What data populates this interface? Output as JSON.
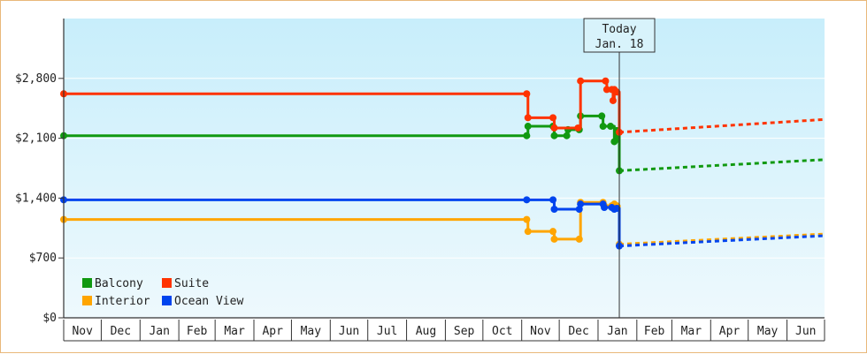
{
  "chart_data": {
    "type": "line",
    "title": "",
    "xlabel": "",
    "ylabel": "",
    "ylim": [
      0,
      3500
    ],
    "y_ticks": [
      {
        "value": 0,
        "label": "$0"
      },
      {
        "value": 700,
        "label": "$700"
      },
      {
        "value": 1400,
        "label": "$1,400"
      },
      {
        "value": 2100,
        "label": "$2,100"
      },
      {
        "value": 2800,
        "label": "$2,800"
      }
    ],
    "x_domain": [
      "2023-11-01",
      "2025-07-01"
    ],
    "x_ticks": [
      {
        "label": "Nov",
        "start": "2023-11-01",
        "end": "2023-12-01"
      },
      {
        "label": "Dec",
        "start": "2023-12-01",
        "end": "2024-01-01"
      },
      {
        "label": "Jan",
        "start": "2024-01-01",
        "end": "2024-02-01"
      },
      {
        "label": "Feb",
        "start": "2024-02-01",
        "end": "2024-03-01"
      },
      {
        "label": "Mar",
        "start": "2024-03-01",
        "end": "2024-04-01"
      },
      {
        "label": "Apr",
        "start": "2024-04-01",
        "end": "2024-05-01"
      },
      {
        "label": "May",
        "start": "2024-05-01",
        "end": "2024-06-01"
      },
      {
        "label": "Jun",
        "start": "2024-06-01",
        "end": "2024-07-01"
      },
      {
        "label": "Jul",
        "start": "2024-07-01",
        "end": "2024-08-01"
      },
      {
        "label": "Aug",
        "start": "2024-08-01",
        "end": "2024-09-01"
      },
      {
        "label": "Sep",
        "start": "2024-09-01",
        "end": "2024-10-01"
      },
      {
        "label": "Oct",
        "start": "2024-10-01",
        "end": "2024-11-01"
      },
      {
        "label": "Nov",
        "start": "2024-11-01",
        "end": "2024-12-01"
      },
      {
        "label": "Dec",
        "start": "2024-12-01",
        "end": "2025-01-01"
      },
      {
        "label": "Jan",
        "start": "2025-01-01",
        "end": "2025-02-01"
      },
      {
        "label": "Feb",
        "start": "2025-02-01",
        "end": "2025-03-01"
      },
      {
        "label": "Mar",
        "start": "2025-03-01",
        "end": "2025-04-01"
      },
      {
        "label": "Apr",
        "start": "2025-04-01",
        "end": "2025-05-01"
      },
      {
        "label": "May",
        "start": "2025-05-01",
        "end": "2025-06-01"
      },
      {
        "label": "Jun",
        "start": "2025-06-01",
        "end": "2025-07-01"
      }
    ],
    "today": {
      "line1": "Today",
      "line2": "Jan. 18",
      "date": "2025-01-18"
    },
    "legend": {
      "position": "bottom-left"
    },
    "colors": {
      "background_top": "#c8eefb",
      "background_bottom": "#eef9fd",
      "axis": "#333333",
      "today_box": "#d8f3fb"
    },
    "series": [
      {
        "name": "Balcony",
        "color": "#119911",
        "points": [
          {
            "x": "2023-11-01",
            "y": 2130
          },
          {
            "x": "2024-11-05",
            "y": 2130
          },
          {
            "x": "2024-11-06",
            "y": 2240
          },
          {
            "x": "2024-11-26",
            "y": 2240
          },
          {
            "x": "2024-11-27",
            "y": 2130
          },
          {
            "x": "2024-12-07",
            "y": 2130
          },
          {
            "x": "2024-12-08",
            "y": 2200
          },
          {
            "x": "2024-12-17",
            "y": 2200
          },
          {
            "x": "2024-12-18",
            "y": 2360
          },
          {
            "x": "2025-01-04",
            "y": 2360
          },
          {
            "x": "2025-01-05",
            "y": 2240
          },
          {
            "x": "2025-01-11",
            "y": 2240
          },
          {
            "x": "2025-01-14",
            "y": 2060
          },
          {
            "x": "2025-01-16",
            "y": 2190
          },
          {
            "x": "2025-01-18",
            "y": 1720
          }
        ],
        "forecast": [
          {
            "x": "2025-01-18",
            "y": 1720
          },
          {
            "x": "2025-07-01",
            "y": 1850
          }
        ]
      },
      {
        "name": "Suite",
        "color": "#ff3300",
        "points": [
          {
            "x": "2023-11-01",
            "y": 2620
          },
          {
            "x": "2024-11-05",
            "y": 2620
          },
          {
            "x": "2024-11-06",
            "y": 2340
          },
          {
            "x": "2024-11-26",
            "y": 2340
          },
          {
            "x": "2024-11-27",
            "y": 2220
          },
          {
            "x": "2024-12-16",
            "y": 2220
          },
          {
            "x": "2024-12-18",
            "y": 2770
          },
          {
            "x": "2025-01-07",
            "y": 2770
          },
          {
            "x": "2025-01-08",
            "y": 2670
          },
          {
            "x": "2025-01-12",
            "y": 2670
          },
          {
            "x": "2025-01-13",
            "y": 2540
          },
          {
            "x": "2025-01-14",
            "y": 2670
          },
          {
            "x": "2025-01-16",
            "y": 2640
          },
          {
            "x": "2025-01-18",
            "y": 2170
          }
        ],
        "forecast": [
          {
            "x": "2025-01-18",
            "y": 2170
          },
          {
            "x": "2025-07-01",
            "y": 2320
          }
        ]
      },
      {
        "name": "Interior",
        "color": "#ffa500",
        "points": [
          {
            "x": "2023-11-01",
            "y": 1150
          },
          {
            "x": "2024-11-05",
            "y": 1150
          },
          {
            "x": "2024-11-06",
            "y": 1010
          },
          {
            "x": "2024-11-26",
            "y": 1010
          },
          {
            "x": "2024-11-27",
            "y": 920
          },
          {
            "x": "2024-12-17",
            "y": 920
          },
          {
            "x": "2024-12-18",
            "y": 1350
          },
          {
            "x": "2025-01-05",
            "y": 1350
          },
          {
            "x": "2025-01-06",
            "y": 1310
          },
          {
            "x": "2025-01-12",
            "y": 1310
          },
          {
            "x": "2025-01-14",
            "y": 1330
          },
          {
            "x": "2025-01-16",
            "y": 1310
          },
          {
            "x": "2025-01-18",
            "y": 860
          }
        ],
        "forecast": [
          {
            "x": "2025-01-18",
            "y": 860
          },
          {
            "x": "2025-07-01",
            "y": 980
          }
        ]
      },
      {
        "name": "Ocean View",
        "color": "#0044ee",
        "points": [
          {
            "x": "2023-11-01",
            "y": 1380
          },
          {
            "x": "2024-11-05",
            "y": 1380
          },
          {
            "x": "2024-11-26",
            "y": 1380
          },
          {
            "x": "2024-11-27",
            "y": 1270
          },
          {
            "x": "2024-12-17",
            "y": 1270
          },
          {
            "x": "2024-12-18",
            "y": 1330
          },
          {
            "x": "2025-01-05",
            "y": 1330
          },
          {
            "x": "2025-01-06",
            "y": 1290
          },
          {
            "x": "2025-01-12",
            "y": 1290
          },
          {
            "x": "2025-01-14",
            "y": 1270
          },
          {
            "x": "2025-01-16",
            "y": 1280
          },
          {
            "x": "2025-01-18",
            "y": 840
          }
        ],
        "forecast": [
          {
            "x": "2025-01-18",
            "y": 840
          },
          {
            "x": "2025-07-01",
            "y": 960
          }
        ]
      }
    ]
  }
}
